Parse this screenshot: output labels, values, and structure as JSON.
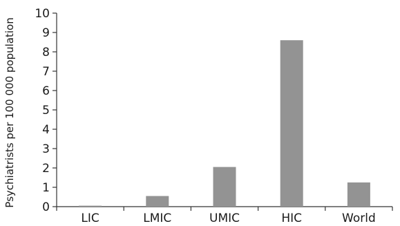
{
  "chart_data": {
    "type": "bar",
    "title": "",
    "xlabel": "",
    "ylabel": "Psychiatrists per 100 000 population",
    "categories": [
      "LIC",
      "LMIC",
      "UMIC",
      "HIC",
      "World"
    ],
    "values": [
      0.05,
      0.55,
      2.05,
      8.6,
      1.25
    ],
    "ylim": [
      0,
      10
    ],
    "yticks": [
      0,
      1,
      2,
      3,
      4,
      5,
      6,
      7,
      8,
      9,
      10
    ],
    "ytick_labels": [
      "0",
      "1",
      "2",
      "3",
      "4",
      "5",
      "6",
      "7",
      "8",
      "9",
      "10"
    ],
    "bar_color": "#939393",
    "axis_color": "#333333",
    "grid": false,
    "legend": "none"
  }
}
